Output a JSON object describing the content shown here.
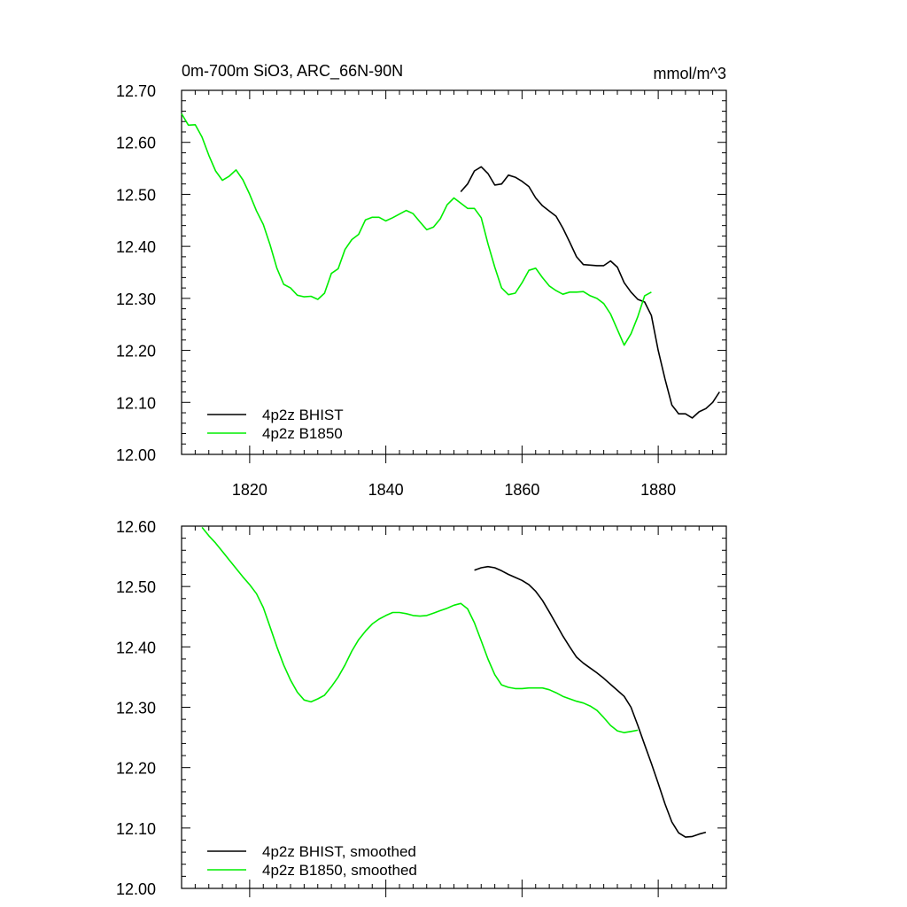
{
  "chart_data": [
    {
      "type": "line",
      "title": "0m-700m SiO3, ARC_66N-90N",
      "units": "mmol/m^3",
      "xlim": [
        1810,
        1890
      ],
      "ylim": [
        12.0,
        12.7
      ],
      "x_ticks": [
        1820,
        1840,
        1860,
        1880
      ],
      "y_ticks": [
        "12.00",
        "12.10",
        "12.20",
        "12.30",
        "12.40",
        "12.50",
        "12.60",
        "12.70"
      ],
      "show_x_tick_labels": true,
      "legend_position": "bottom-left",
      "series": [
        {
          "name": "4p2z BHIST",
          "color": "#000000",
          "x": [
            1851,
            1852,
            1853,
            1854,
            1855,
            1856,
            1857,
            1858,
            1859,
            1860,
            1861,
            1862,
            1863,
            1864,
            1865,
            1866,
            1867,
            1868,
            1869,
            1870,
            1871,
            1872,
            1873,
            1874,
            1875,
            1876,
            1877,
            1878,
            1879,
            1880,
            1881,
            1882,
            1883,
            1884,
            1885,
            1886,
            1887,
            1888,
            1889
          ],
          "y": [
            12.505,
            12.52,
            12.545,
            12.553,
            12.54,
            12.518,
            12.52,
            12.537,
            12.533,
            12.525,
            12.515,
            12.493,
            12.478,
            12.468,
            12.458,
            12.435,
            12.408,
            12.38,
            12.365,
            12.364,
            12.363,
            12.363,
            12.372,
            12.36,
            12.33,
            12.312,
            12.298,
            12.293,
            12.267,
            12.2,
            12.145,
            12.095,
            12.078,
            12.078,
            12.07,
            12.082,
            12.088,
            12.1,
            12.12
          ]
        },
        {
          "name": "4p2z B1850",
          "color": "#00ee00",
          "x": [
            1810,
            1811,
            1812,
            1813,
            1814,
            1815,
            1816,
            1817,
            1818,
            1819,
            1820,
            1821,
            1822,
            1823,
            1824,
            1825,
            1826,
            1827,
            1828,
            1829,
            1830,
            1831,
            1832,
            1833,
            1834,
            1835,
            1836,
            1837,
            1838,
            1839,
            1840,
            1841,
            1842,
            1843,
            1844,
            1845,
            1846,
            1847,
            1848,
            1849,
            1850,
            1851,
            1852,
            1853,
            1854,
            1855,
            1856,
            1857,
            1858,
            1859,
            1860,
            1861,
            1862,
            1863,
            1864,
            1865,
            1866,
            1867,
            1868,
            1869,
            1870,
            1871,
            1872,
            1873,
            1874,
            1875,
            1876,
            1877,
            1878,
            1879
          ],
          "y": [
            12.655,
            12.633,
            12.634,
            12.61,
            12.575,
            12.545,
            12.527,
            12.535,
            12.547,
            12.528,
            12.5,
            12.468,
            12.442,
            12.403,
            12.358,
            12.327,
            12.32,
            12.306,
            12.303,
            12.304,
            12.298,
            12.31,
            12.348,
            12.357,
            12.394,
            12.413,
            12.423,
            12.451,
            12.456,
            12.456,
            12.449,
            12.455,
            12.462,
            12.469,
            12.463,
            12.447,
            12.432,
            12.437,
            12.453,
            12.48,
            12.493,
            12.483,
            12.473,
            12.473,
            12.455,
            12.405,
            12.36,
            12.32,
            12.307,
            12.31,
            12.33,
            12.354,
            12.358,
            12.34,
            12.324,
            12.315,
            12.308,
            12.312,
            12.312,
            12.313,
            12.305,
            12.3,
            12.29,
            12.27,
            12.24,
            12.21,
            12.232,
            12.265,
            12.305,
            12.312
          ]
        }
      ]
    },
    {
      "type": "line",
      "title": "",
      "xlim": [
        1810,
        1890
      ],
      "ylim": [
        12.0,
        12.6
      ],
      "x_ticks": [
        1820,
        1840,
        1860,
        1880
      ],
      "y_ticks": [
        "12.00",
        "12.10",
        "12.20",
        "12.30",
        "12.40",
        "12.50",
        "12.60"
      ],
      "show_x_tick_labels": false,
      "legend_position": "bottom-left",
      "series": [
        {
          "name": "4p2z BHIST, smoothed",
          "color": "#000000",
          "x": [
            1853,
            1854,
            1855,
            1856,
            1857,
            1858,
            1859,
            1860,
            1861,
            1862,
            1863,
            1864,
            1865,
            1866,
            1867,
            1868,
            1869,
            1870,
            1871,
            1872,
            1873,
            1874,
            1875,
            1876,
            1877,
            1878,
            1879,
            1880,
            1881,
            1882,
            1883,
            1884,
            1885,
            1886,
            1887
          ],
          "y": [
            12.527,
            12.531,
            12.533,
            12.531,
            12.526,
            12.52,
            12.515,
            12.51,
            12.503,
            12.492,
            12.477,
            12.458,
            12.438,
            12.418,
            12.4,
            12.383,
            12.373,
            12.365,
            12.357,
            12.348,
            12.338,
            12.328,
            12.318,
            12.3,
            12.27,
            12.238,
            12.207,
            12.174,
            12.14,
            12.11,
            12.092,
            12.085,
            12.086,
            12.09,
            12.093
          ]
        },
        {
          "name": "4p2z B1850, smoothed",
          "color": "#00ee00",
          "x": [
            1813,
            1814,
            1815,
            1816,
            1817,
            1818,
            1819,
            1820,
            1821,
            1822,
            1823,
            1824,
            1825,
            1826,
            1827,
            1828,
            1829,
            1830,
            1831,
            1832,
            1833,
            1834,
            1835,
            1836,
            1837,
            1838,
            1839,
            1840,
            1841,
            1842,
            1843,
            1844,
            1845,
            1846,
            1847,
            1848,
            1849,
            1850,
            1851,
            1852,
            1853,
            1854,
            1855,
            1856,
            1857,
            1858,
            1859,
            1860,
            1861,
            1862,
            1863,
            1864,
            1865,
            1866,
            1867,
            1868,
            1869,
            1870,
            1871,
            1872,
            1873,
            1874,
            1875,
            1876,
            1877
          ],
          "y": [
            12.598,
            12.584,
            12.572,
            12.558,
            12.544,
            12.53,
            12.516,
            12.503,
            12.488,
            12.465,
            12.433,
            12.4,
            12.37,
            12.345,
            12.325,
            12.312,
            12.309,
            12.314,
            12.32,
            12.334,
            12.35,
            12.37,
            12.393,
            12.412,
            12.426,
            12.438,
            12.446,
            12.452,
            12.457,
            12.457,
            12.455,
            12.452,
            12.451,
            12.452,
            12.456,
            12.46,
            12.464,
            12.469,
            12.472,
            12.463,
            12.44,
            12.41,
            12.38,
            12.354,
            12.337,
            12.333,
            12.331,
            12.331,
            12.332,
            12.332,
            12.332,
            12.329,
            12.324,
            12.318,
            12.314,
            12.31,
            12.307,
            12.302,
            12.295,
            12.283,
            12.27,
            12.261,
            12.258,
            12.26,
            12.262
          ]
        }
      ]
    }
  ]
}
